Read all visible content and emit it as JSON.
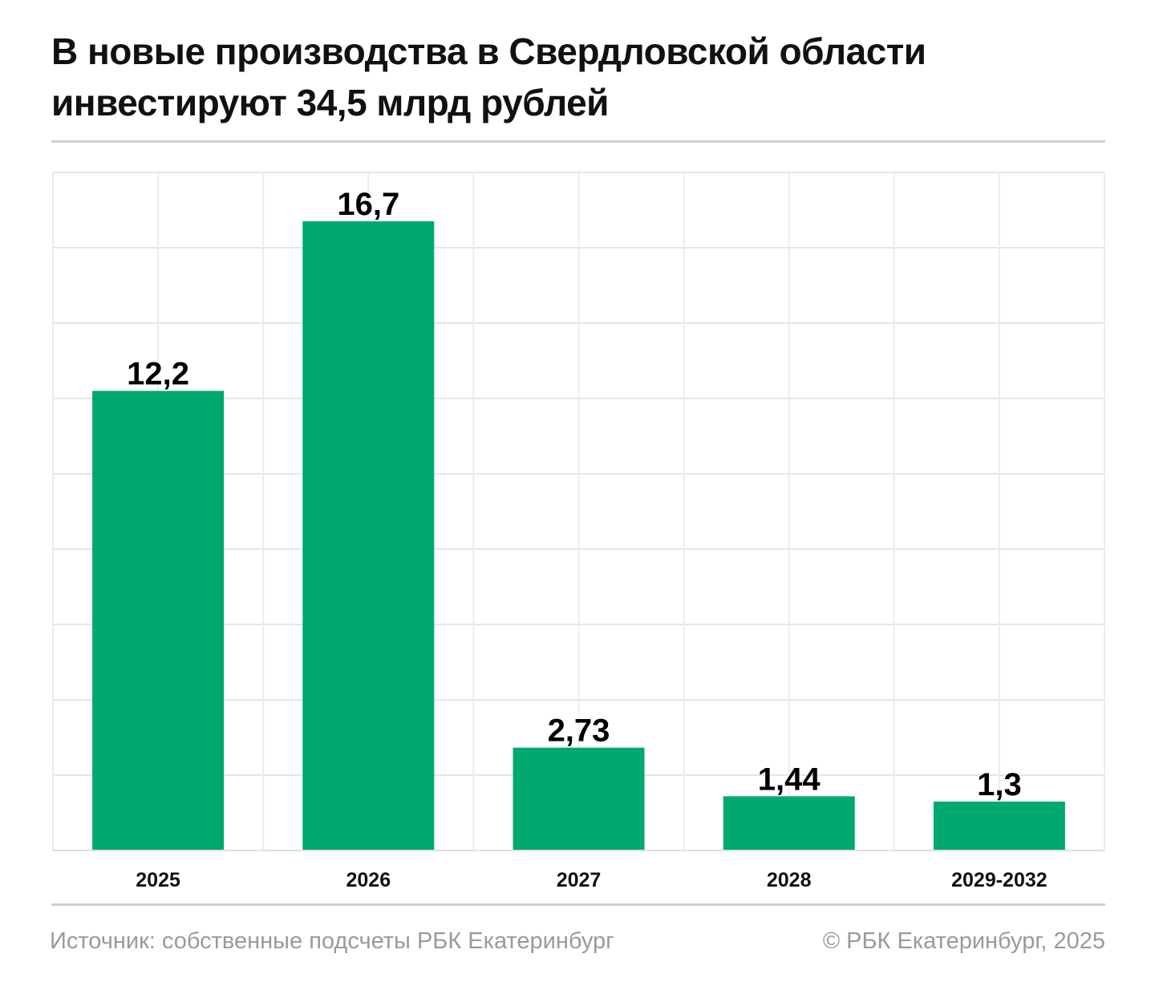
{
  "title": "В новые производства в Свердловской области инвестируют 34,5 млрд рублей",
  "footer": {
    "source": "Источник: собственные подсчеты РБК Екатеринбург",
    "copyright": "© РБК Екатеринбург, 2025"
  },
  "chart_data": {
    "type": "bar",
    "categories": [
      "2025",
      "2026",
      "2027",
      "2028",
      "2029-2032"
    ],
    "values": [
      12.2,
      16.7,
      2.73,
      1.44,
      1.3
    ],
    "value_labels": [
      "12,2",
      "16,7",
      "2,73",
      "1,44",
      "1,3"
    ],
    "ylim": [
      0,
      18
    ],
    "grid": true,
    "bar_color": "#00a971",
    "xlabel": "",
    "ylabel": ""
  }
}
